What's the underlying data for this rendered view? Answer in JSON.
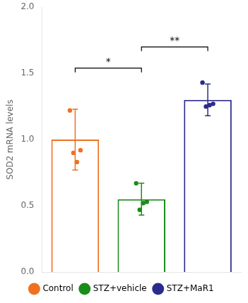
{
  "chart_data": {
    "type": "bar",
    "categories": [
      "Control",
      "STZ+vehicle",
      "STZ+MaR1"
    ],
    "values": [
      1.0,
      0.55,
      1.3
    ],
    "errors": [
      0.23,
      0.12,
      0.12
    ],
    "points": [
      [
        1.22,
        0.9,
        0.83,
        0.92
      ],
      [
        0.67,
        0.47,
        0.52,
        0.53
      ],
      [
        1.43,
        1.25,
        1.26,
        1.27
      ]
    ],
    "colors": [
      "#F07020",
      "#1A8C1A",
      "#2B2B8C"
    ],
    "ylabel": "SOD2 mRNA levels",
    "ylim": [
      0.0,
      2.0
    ],
    "yticks": [
      {
        "value": 0.0,
        "label": "0.0"
      },
      0.5,
      {
        "value": 1.0,
        "label": "1.0"
      },
      1.5,
      {
        "value": 2.0,
        "label": "2.0"
      }
    ],
    "annotations": [
      {
        "text": "*",
        "from": "Control",
        "to": "STZ+vehicle",
        "y": 1.54
      },
      {
        "text": "**",
        "from": "STZ+vehicle",
        "to": "STZ+MaR1",
        "y": 1.7
      }
    ],
    "legend": "bottom",
    "grid": false,
    "tick_labels": "y"
  }
}
